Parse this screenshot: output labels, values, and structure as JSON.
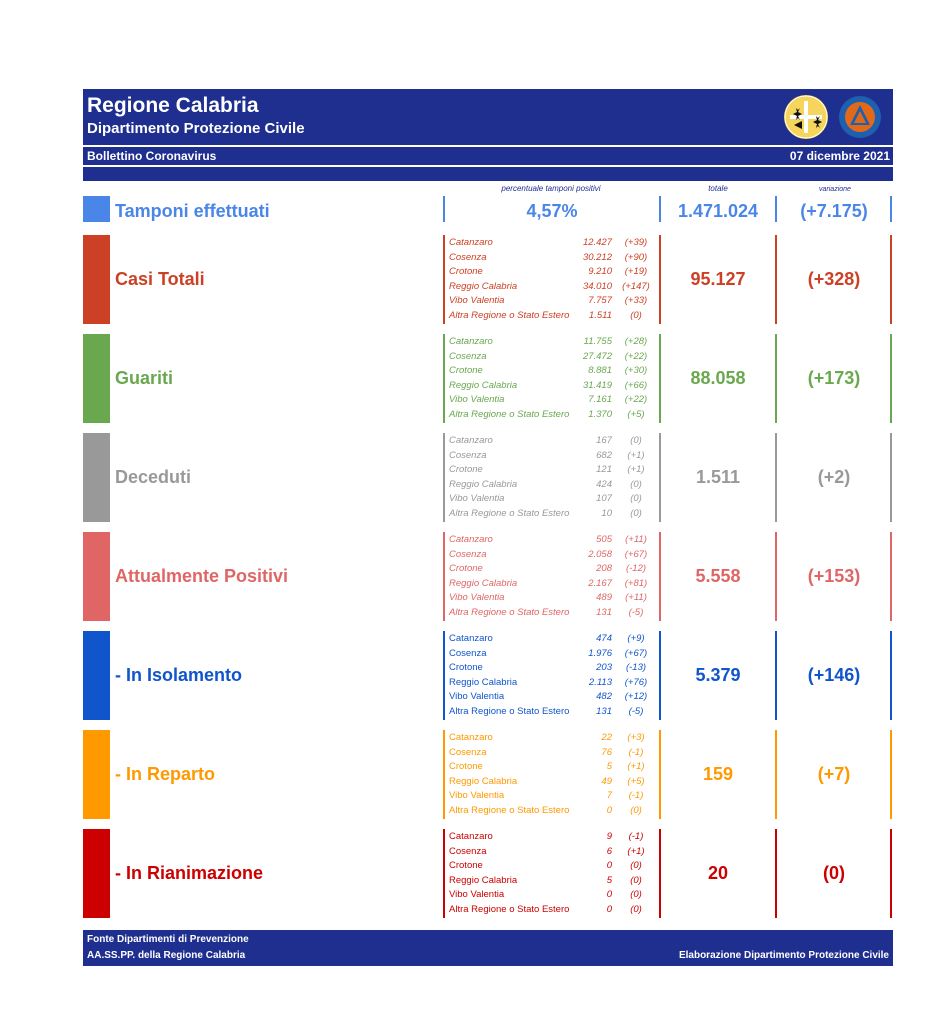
{
  "header": {
    "title": "Regione Calabria",
    "subtitle": "Dipartimento Protezione Civile",
    "bulletin": "Bollettino Coronavirus",
    "date": "07 dicembre 2021"
  },
  "columns": {
    "pct_label": "percentuale tamponi positivi",
    "total_label": "totale",
    "var_label": "variazione"
  },
  "tamponi": {
    "label": "Tamponi effettuati",
    "pct": "4,57%",
    "total": "1.471.024",
    "variation": "(+7.175)",
    "color": "#4a86e8"
  },
  "provinces": [
    "Catanzaro",
    "Cosenza",
    "Crotone",
    "Reggio Calabria",
    "Vibo Valentia",
    "Altra Regione o Stato Estero"
  ],
  "rows": [
    {
      "label": "Casi Totali",
      "color": "#cc4125",
      "values": [
        "12.427",
        "30.212",
        "9.210",
        "34.010",
        "7.757",
        "1.511"
      ],
      "deltas": [
        "(+39)",
        "(+90)",
        "(+19)",
        "(+147)",
        "(+33)",
        "(0)"
      ],
      "total": "95.127",
      "variation": "(+328)"
    },
    {
      "label": "Guariti",
      "color": "#6aa84f",
      "values": [
        "11.755",
        "27.472",
        "8.881",
        "31.419",
        "7.161",
        "1.370"
      ],
      "deltas": [
        "(+28)",
        "(+22)",
        "(+30)",
        "(+66)",
        "(+22)",
        "(+5)"
      ],
      "total": "88.058",
      "variation": "(+173)"
    },
    {
      "label": "Deceduti",
      "color": "#999999",
      "values": [
        "167",
        "682",
        "121",
        "424",
        "107",
        "10"
      ],
      "deltas": [
        "(0)",
        "(+1)",
        "(+1)",
        "(0)",
        "(0)",
        "(0)"
      ],
      "total": "1.511",
      "variation": "(+2)"
    },
    {
      "label": "Attualmente Positivi",
      "color": "#e06666",
      "values": [
        "505",
        "2.058",
        "208",
        "2.167",
        "489",
        "131"
      ],
      "deltas": [
        "(+11)",
        "(+67)",
        "(-12)",
        "(+81)",
        "(+11)",
        "(-5)"
      ],
      "total": "5.558",
      "variation": "(+153)"
    },
    {
      "label": " - In Isolamento",
      "color": "#1155cc",
      "values": [
        "474",
        "1.976",
        "203",
        "2.113",
        "482",
        "131"
      ],
      "deltas": [
        "(+9)",
        "(+67)",
        "(-13)",
        "(+76)",
        "(+12)",
        "(-5)"
      ],
      "total": "5.379",
      "variation": "(+146)"
    },
    {
      "label": " - In Reparto",
      "color": "#ff9900",
      "values": [
        "22",
        "76",
        "5",
        "49",
        "7",
        "0"
      ],
      "deltas": [
        "(+3)",
        "(-1)",
        "(+1)",
        "(+5)",
        "(-1)",
        "(0)"
      ],
      "total": "159",
      "variation": "(+7)"
    },
    {
      "label": " - In Rianimazione",
      "color": "#cc0000",
      "values": [
        "9",
        "6",
        "0",
        "5",
        "0",
        "0"
      ],
      "deltas": [
        "(-1)",
        "(+1)",
        "(0)",
        "(0)",
        "(0)",
        "(0)"
      ],
      "total": "20",
      "variation": "(0)"
    }
  ],
  "footer": {
    "source_line1": "Fonte Dipartimenti di Prevenzione",
    "source_line2": "AA.SS.PP.  della Regione Calabria",
    "credit": "Elaborazione Dipartimento Protezione Civile"
  },
  "logos": [
    "calabria-region-emblem",
    "protezione-civile-logo"
  ]
}
